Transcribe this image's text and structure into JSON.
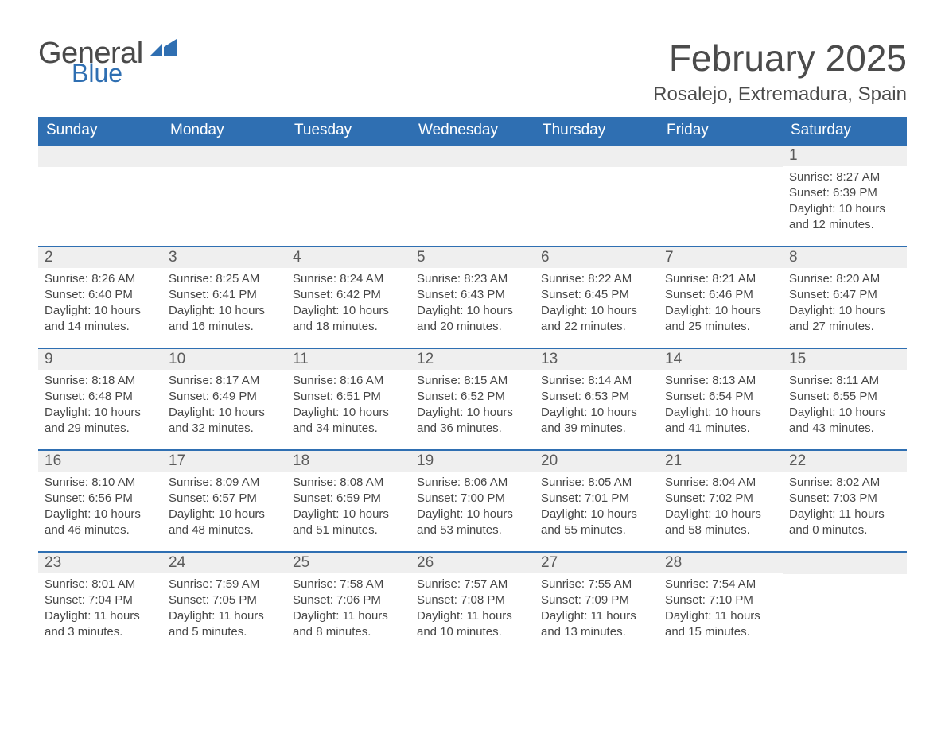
{
  "logo": {
    "text_general": "General",
    "text_blue": "Blue",
    "flag_color": "#2f6fb2"
  },
  "title": "February 2025",
  "subtitle": "Rosalejo, Extremadura, Spain",
  "colors": {
    "header_bg": "#2f6fb2",
    "header_text": "#ffffff",
    "daynum_bg": "#efefef",
    "body_text": "#474747",
    "row_border": "#2f6fb2",
    "page_bg": "#ffffff"
  },
  "day_headers": [
    "Sunday",
    "Monday",
    "Tuesday",
    "Wednesday",
    "Thursday",
    "Friday",
    "Saturday"
  ],
  "weeks": [
    [
      null,
      null,
      null,
      null,
      null,
      null,
      {
        "n": "1",
        "sunrise": "8:27 AM",
        "sunset": "6:39 PM",
        "daylight": "10 hours and 12 minutes."
      }
    ],
    [
      {
        "n": "2",
        "sunrise": "8:26 AM",
        "sunset": "6:40 PM",
        "daylight": "10 hours and 14 minutes."
      },
      {
        "n": "3",
        "sunrise": "8:25 AM",
        "sunset": "6:41 PM",
        "daylight": "10 hours and 16 minutes."
      },
      {
        "n": "4",
        "sunrise": "8:24 AM",
        "sunset": "6:42 PM",
        "daylight": "10 hours and 18 minutes."
      },
      {
        "n": "5",
        "sunrise": "8:23 AM",
        "sunset": "6:43 PM",
        "daylight": "10 hours and 20 minutes."
      },
      {
        "n": "6",
        "sunrise": "8:22 AM",
        "sunset": "6:45 PM",
        "daylight": "10 hours and 22 minutes."
      },
      {
        "n": "7",
        "sunrise": "8:21 AM",
        "sunset": "6:46 PM",
        "daylight": "10 hours and 25 minutes."
      },
      {
        "n": "8",
        "sunrise": "8:20 AM",
        "sunset": "6:47 PM",
        "daylight": "10 hours and 27 minutes."
      }
    ],
    [
      {
        "n": "9",
        "sunrise": "8:18 AM",
        "sunset": "6:48 PM",
        "daylight": "10 hours and 29 minutes."
      },
      {
        "n": "10",
        "sunrise": "8:17 AM",
        "sunset": "6:49 PM",
        "daylight": "10 hours and 32 minutes."
      },
      {
        "n": "11",
        "sunrise": "8:16 AM",
        "sunset": "6:51 PM",
        "daylight": "10 hours and 34 minutes."
      },
      {
        "n": "12",
        "sunrise": "8:15 AM",
        "sunset": "6:52 PM",
        "daylight": "10 hours and 36 minutes."
      },
      {
        "n": "13",
        "sunrise": "8:14 AM",
        "sunset": "6:53 PM",
        "daylight": "10 hours and 39 minutes."
      },
      {
        "n": "14",
        "sunrise": "8:13 AM",
        "sunset": "6:54 PM",
        "daylight": "10 hours and 41 minutes."
      },
      {
        "n": "15",
        "sunrise": "8:11 AM",
        "sunset": "6:55 PM",
        "daylight": "10 hours and 43 minutes."
      }
    ],
    [
      {
        "n": "16",
        "sunrise": "8:10 AM",
        "sunset": "6:56 PM",
        "daylight": "10 hours and 46 minutes."
      },
      {
        "n": "17",
        "sunrise": "8:09 AM",
        "sunset": "6:57 PM",
        "daylight": "10 hours and 48 minutes."
      },
      {
        "n": "18",
        "sunrise": "8:08 AM",
        "sunset": "6:59 PM",
        "daylight": "10 hours and 51 minutes."
      },
      {
        "n": "19",
        "sunrise": "8:06 AM",
        "sunset": "7:00 PM",
        "daylight": "10 hours and 53 minutes."
      },
      {
        "n": "20",
        "sunrise": "8:05 AM",
        "sunset": "7:01 PM",
        "daylight": "10 hours and 55 minutes."
      },
      {
        "n": "21",
        "sunrise": "8:04 AM",
        "sunset": "7:02 PM",
        "daylight": "10 hours and 58 minutes."
      },
      {
        "n": "22",
        "sunrise": "8:02 AM",
        "sunset": "7:03 PM",
        "daylight": "11 hours and 0 minutes."
      }
    ],
    [
      {
        "n": "23",
        "sunrise": "8:01 AM",
        "sunset": "7:04 PM",
        "daylight": "11 hours and 3 minutes."
      },
      {
        "n": "24",
        "sunrise": "7:59 AM",
        "sunset": "7:05 PM",
        "daylight": "11 hours and 5 minutes."
      },
      {
        "n": "25",
        "sunrise": "7:58 AM",
        "sunset": "7:06 PM",
        "daylight": "11 hours and 8 minutes."
      },
      {
        "n": "26",
        "sunrise": "7:57 AM",
        "sunset": "7:08 PM",
        "daylight": "11 hours and 10 minutes."
      },
      {
        "n": "27",
        "sunrise": "7:55 AM",
        "sunset": "7:09 PM",
        "daylight": "11 hours and 13 minutes."
      },
      {
        "n": "28",
        "sunrise": "7:54 AM",
        "sunset": "7:10 PM",
        "daylight": "11 hours and 15 minutes."
      },
      null
    ]
  ],
  "labels": {
    "sunrise": "Sunrise:",
    "sunset": "Sunset:",
    "daylight": "Daylight:"
  }
}
